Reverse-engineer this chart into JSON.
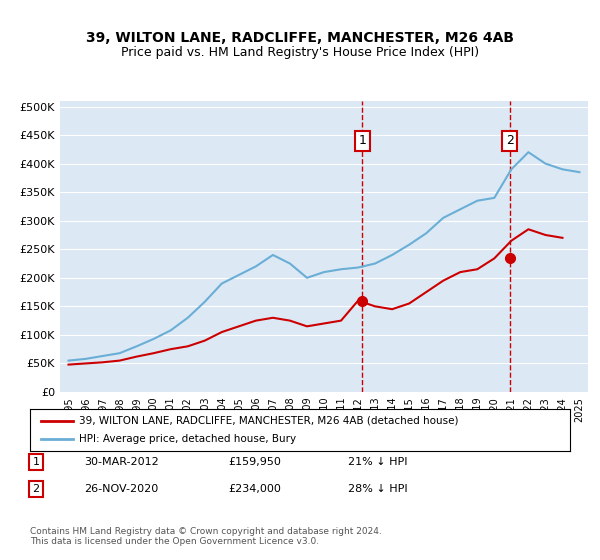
{
  "title1": "39, WILTON LANE, RADCLIFFE, MANCHESTER, M26 4AB",
  "title2": "Price paid vs. HM Land Registry's House Price Index (HPI)",
  "ylabel": "",
  "bg_color": "#dce9f5",
  "plot_bg": "#dce9f5",
  "red_line_label": "39, WILTON LANE, RADCLIFFE, MANCHESTER, M26 4AB (detached house)",
  "blue_line_label": "HPI: Average price, detached house, Bury",
  "annotation1": {
    "num": "1",
    "date": "30-MAR-2012",
    "price": "£159,950",
    "pct": "21% ↓ HPI"
  },
  "annotation2": {
    "num": "2",
    "date": "26-NOV-2020",
    "price": "£234,000",
    "pct": "28% ↓ HPI"
  },
  "footer": "Contains HM Land Registry data © Crown copyright and database right 2024.\nThis data is licensed under the Open Government Licence v3.0.",
  "hpi_years": [
    1995,
    1996,
    1997,
    1998,
    1999,
    2000,
    2001,
    2002,
    2003,
    2004,
    2005,
    2006,
    2007,
    2008,
    2009,
    2010,
    2011,
    2012,
    2013,
    2014,
    2015,
    2016,
    2017,
    2018,
    2019,
    2020,
    2021,
    2022,
    2023,
    2024,
    2025
  ],
  "hpi_values": [
    55000,
    58000,
    63000,
    68000,
    80000,
    93000,
    108000,
    130000,
    158000,
    190000,
    205000,
    220000,
    240000,
    225000,
    200000,
    210000,
    215000,
    218000,
    225000,
    240000,
    258000,
    278000,
    305000,
    320000,
    335000,
    340000,
    390000,
    420000,
    400000,
    390000,
    385000
  ],
  "sale_years": [
    2012.25,
    2020.9
  ],
  "sale_values": [
    159950,
    234000
  ],
  "red_years_raw": [
    1995,
    1996,
    1997,
    1998,
    1999,
    2000,
    2001,
    2002,
    2003,
    2004,
    2005,
    2006,
    2007,
    2008,
    2009,
    2010,
    2011,
    2012,
    2013,
    2014,
    2015,
    2016,
    2017,
    2018,
    2019,
    2020,
    2021,
    2022,
    2023,
    2024
  ],
  "red_values_raw": [
    48000,
    50000,
    52000,
    55000,
    62000,
    68000,
    75000,
    80000,
    90000,
    105000,
    115000,
    125000,
    130000,
    125000,
    115000,
    120000,
    125000,
    160000,
    150000,
    145000,
    155000,
    175000,
    195000,
    210000,
    215000,
    234000,
    265000,
    285000,
    275000,
    270000
  ],
  "ylim_max": 510000,
  "yticks": [
    0,
    50000,
    100000,
    150000,
    200000,
    250000,
    300000,
    350000,
    400000,
    450000,
    500000
  ],
  "xtick_years": [
    1995,
    1996,
    1997,
    1998,
    1999,
    2000,
    2001,
    2002,
    2003,
    2004,
    2005,
    2006,
    2007,
    2008,
    2009,
    2010,
    2011,
    2012,
    2013,
    2014,
    2015,
    2016,
    2017,
    2018,
    2019,
    2020,
    2021,
    2022,
    2023,
    2024,
    2025
  ],
  "marker1_year": 2012.25,
  "marker1_val": 159950,
  "marker2_year": 2020.9,
  "marker2_val": 234000,
  "vline1_year": 2012.25,
  "vline2_year": 2020.9
}
